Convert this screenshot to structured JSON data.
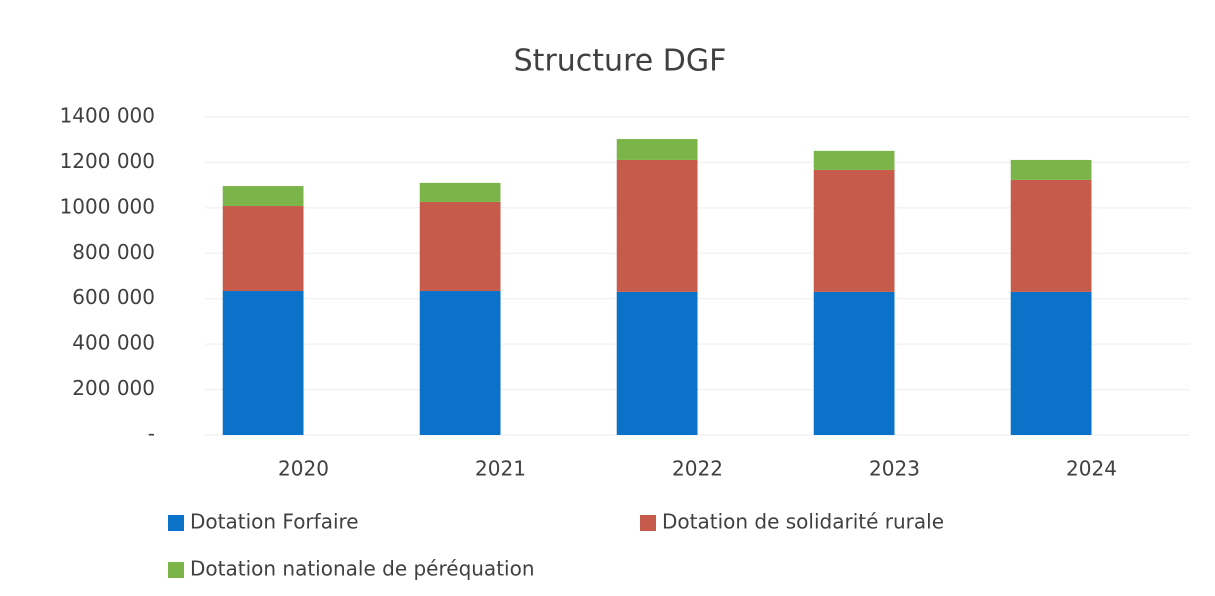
{
  "chart_data": {
    "type": "stacked_bar",
    "title": "Structure DGF",
    "categories": [
      "2020",
      "2021",
      "2022",
      "2023",
      "2024"
    ],
    "series": [
      {
        "name": "Dotation Forfaire",
        "color": "#0a72c9",
        "values": [
          634000,
          634000,
          630000,
          630000,
          630000
        ]
      },
      {
        "name": "Dotation de solidarité rurale",
        "color": "#c65b4b",
        "values": [
          374000,
          392000,
          581000,
          537000,
          493000
        ]
      },
      {
        "name": "Dotation nationale de péréquation",
        "color": "#7bb54a",
        "values": [
          88000,
          84000,
          92000,
          84000,
          88000
        ]
      }
    ],
    "ylim": [
      0,
      1400000
    ],
    "yticks": [
      {
        "value": 0,
        "label": "-"
      },
      {
        "value": 200000,
        "label": "200 000"
      },
      {
        "value": 400000,
        "label": "400 000"
      },
      {
        "value": 600000,
        "label": "600 000"
      },
      {
        "value": 800000,
        "label": "800 000"
      },
      {
        "value": 1000000,
        "label": "1000 000"
      },
      {
        "value": 1200000,
        "label": "1200 000"
      },
      {
        "value": 1400000,
        "label": "1400 000"
      }
    ],
    "grid": true
  }
}
